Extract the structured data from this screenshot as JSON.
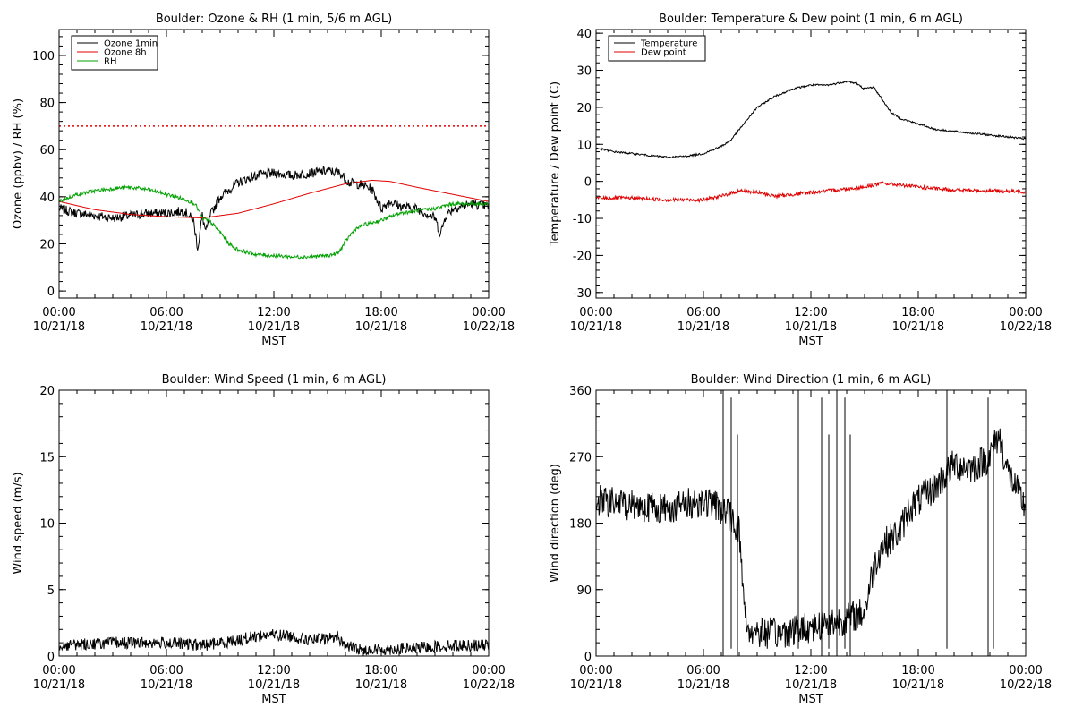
{
  "chart_data": [
    {
      "type": "line",
      "title": "Boulder: Ozone & RH (1 min, 5/6 m AGL)",
      "ylabel": "Ozone (ppbv) / RH (%)",
      "xlabel": "MST",
      "xlim": [
        0,
        24
      ],
      "ylim": [
        -3,
        111
      ],
      "yticks": [
        0,
        20,
        40,
        60,
        80,
        100
      ],
      "legend": "top-left",
      "reference_line": {
        "y": 70,
        "style": "dotted",
        "color": "#e00000"
      },
      "series": [
        {
          "name": "Ozone 1min",
          "color": "#000000",
          "noise": 2.0,
          "points": [
            [
              0,
              35
            ],
            [
              1,
              33
            ],
            [
              2,
              32
            ],
            [
              3,
              31
            ],
            [
              4,
              32
            ],
            [
              5,
              33
            ],
            [
              6,
              33
            ],
            [
              7,
              34
            ],
            [
              7.5,
              30
            ],
            [
              7.75,
              18
            ],
            [
              8,
              32
            ],
            [
              8.2,
              25
            ],
            [
              8.5,
              33
            ],
            [
              9,
              40
            ],
            [
              10,
              46
            ],
            [
              11,
              49
            ],
            [
              12,
              50
            ],
            [
              13,
              49
            ],
            [
              14,
              50
            ],
            [
              15,
              51
            ],
            [
              15.7,
              50
            ],
            [
              16.2,
              46
            ],
            [
              17,
              45
            ],
            [
              17.5,
              43
            ],
            [
              18,
              35
            ],
            [
              18.5,
              38
            ],
            [
              19,
              36
            ],
            [
              20,
              35
            ],
            [
              21,
              31
            ],
            [
              21.3,
              24
            ],
            [
              21.6,
              32
            ],
            [
              22,
              35
            ],
            [
              23,
              37
            ],
            [
              24,
              36
            ]
          ]
        },
        {
          "name": "Ozone 8h",
          "color": "#e00000",
          "noise": 0,
          "points": [
            [
              0,
              38
            ],
            [
              2,
              34.5
            ],
            [
              4,
              32.5
            ],
            [
              6,
              31.5
            ],
            [
              8,
              31
            ],
            [
              10,
              33
            ],
            [
              12,
              37
            ],
            [
              14,
              41.5
            ],
            [
              16,
              45.5
            ],
            [
              17.5,
              47
            ],
            [
              18.5,
              46.5
            ],
            [
              20,
              44
            ],
            [
              22,
              41
            ],
            [
              24,
              38
            ]
          ]
        },
        {
          "name": "RH",
          "color": "#00a000",
          "noise": 0.8,
          "points": [
            [
              0,
              38
            ],
            [
              1,
              41
            ],
            [
              2,
              42.5
            ],
            [
              3,
              43.5
            ],
            [
              4,
              44
            ],
            [
              5,
              43
            ],
            [
              6,
              41
            ],
            [
              7,
              39
            ],
            [
              7.6,
              37
            ],
            [
              8,
              31
            ],
            [
              8.5,
              29
            ],
            [
              9,
              25
            ],
            [
              9.5,
              20
            ],
            [
              10,
              17.5
            ],
            [
              11,
              15.5
            ],
            [
              12,
              15
            ],
            [
              13,
              14.5
            ],
            [
              14,
              14.5
            ],
            [
              15,
              15
            ],
            [
              15.6,
              16
            ],
            [
              16,
              21
            ],
            [
              16.5,
              26
            ],
            [
              17,
              28
            ],
            [
              18,
              30
            ],
            [
              19,
              33
            ],
            [
              20,
              34
            ],
            [
              21,
              35
            ],
            [
              22,
              37
            ],
            [
              23,
              37
            ],
            [
              24,
              37
            ]
          ]
        }
      ]
    },
    {
      "type": "line",
      "title": "Boulder: Temperature & Dew point (1 min, 6 m AGL)",
      "ylabel": "Temperature / Dew point (C)",
      "xlabel": "MST",
      "xlim": [
        0,
        24
      ],
      "ylim": [
        -31.5,
        41
      ],
      "yticks": [
        -30,
        -20,
        -10,
        0,
        10,
        20,
        30,
        40
      ],
      "legend": "top-left",
      "series": [
        {
          "name": "Temperature",
          "color": "#000000",
          "noise": 0.25,
          "points": [
            [
              0,
              9
            ],
            [
              1,
              8
            ],
            [
              2,
              7.5
            ],
            [
              3,
              7
            ],
            [
              4,
              6.5
            ],
            [
              5,
              6.8
            ],
            [
              6,
              7.5
            ],
            [
              7,
              9.5
            ],
            [
              7.5,
              11
            ],
            [
              8,
              14
            ],
            [
              8.5,
              17
            ],
            [
              9,
              20
            ],
            [
              10,
              23
            ],
            [
              11,
              25
            ],
            [
              12,
              26
            ],
            [
              13,
              26
            ],
            [
              14,
              27
            ],
            [
              14.5,
              26.5
            ],
            [
              15,
              25
            ],
            [
              15.5,
              25.5
            ],
            [
              16,
              22
            ],
            [
              16.5,
              18.5
            ],
            [
              17,
              17
            ],
            [
              18,
              15.5
            ],
            [
              19,
              14
            ],
            [
              20,
              13.5
            ],
            [
              21,
              13
            ],
            [
              22,
              12.5
            ],
            [
              23,
              12
            ],
            [
              24,
              11.5
            ]
          ]
        },
        {
          "name": "Dew point",
          "color": "#e00000",
          "noise": 0.5,
          "points": [
            [
              0,
              -4.5
            ],
            [
              2,
              -4.5
            ],
            [
              4,
              -5
            ],
            [
              6,
              -5
            ],
            [
              7,
              -4
            ],
            [
              8,
              -2.5
            ],
            [
              9,
              -3
            ],
            [
              10,
              -4
            ],
            [
              11,
              -3.5
            ],
            [
              12,
              -3
            ],
            [
              13,
              -2.5
            ],
            [
              14,
              -2
            ],
            [
              15,
              -1.5
            ],
            [
              15.5,
              -1
            ],
            [
              16,
              -0.5
            ],
            [
              17,
              -1
            ],
            [
              18,
              -1.5
            ],
            [
              19,
              -2
            ],
            [
              20,
              -2.3
            ],
            [
              21,
              -2.5
            ],
            [
              22,
              -2.5
            ],
            [
              23,
              -2.7
            ],
            [
              24,
              -2.8
            ]
          ]
        }
      ]
    },
    {
      "type": "line",
      "title": "Boulder: Wind Speed (1 min, 6 m AGL)",
      "ylabel": "Wind speed (m/s)",
      "xlabel": "MST",
      "xlim": [
        0,
        24
      ],
      "ylim": [
        0,
        20
      ],
      "yticks": [
        0,
        5,
        10,
        15,
        20
      ],
      "series": [
        {
          "color": "#000000",
          "noise": 0.45,
          "points": [
            [
              0,
              0.8
            ],
            [
              3,
              1
            ],
            [
              6,
              1
            ],
            [
              8,
              0.8
            ],
            [
              9,
              1
            ],
            [
              10,
              1.2
            ],
            [
              11,
              1.5
            ],
            [
              12,
              1.6
            ],
            [
              13,
              1.5
            ],
            [
              14,
              1.2
            ],
            [
              15,
              1.3
            ],
            [
              15.5,
              1.5
            ],
            [
              16,
              0.8
            ],
            [
              17,
              0.4
            ],
            [
              18,
              0.5
            ],
            [
              20,
              0.6
            ],
            [
              22,
              0.8
            ],
            [
              24,
              0.8
            ]
          ]
        }
      ]
    },
    {
      "type": "line",
      "title": "Boulder: Wind Direction (1 min, 6 m AGL)",
      "ylabel": "Wind direction (deg)",
      "xlabel": "MST",
      "xlim": [
        0,
        24
      ],
      "ylim": [
        0,
        360
      ],
      "yticks": [
        0,
        90,
        180,
        270,
        360
      ],
      "series": [
        {
          "color": "#000000",
          "noise": 22,
          "points": [
            [
              0,
              210
            ],
            [
              2,
              205
            ],
            [
              4,
              200
            ],
            [
              5,
              205
            ],
            [
              6,
              210
            ],
            [
              7,
              200
            ],
            [
              7.5,
              190
            ],
            [
              8,
              170
            ],
            [
              8.3,
              60
            ],
            [
              8.5,
              35
            ],
            [
              10,
              30
            ],
            [
              11,
              35
            ],
            [
              12,
              40
            ],
            [
              13,
              45
            ],
            [
              14,
              50
            ],
            [
              15,
              60
            ],
            [
              15.5,
              120
            ],
            [
              16,
              150
            ],
            [
              17,
              170
            ],
            [
              17.5,
              200
            ],
            [
              18,
              210
            ],
            [
              19,
              230
            ],
            [
              20,
              260
            ],
            [
              21,
              255
            ],
            [
              22,
              270
            ],
            [
              22.5,
              300
            ],
            [
              23,
              250
            ],
            [
              24,
              200
            ]
          ]
        }
      ]
    }
  ],
  "xticks": [
    {
      "x": 0,
      "time": "00:00",
      "date": "10/21/18"
    },
    {
      "x": 6,
      "time": "06:00",
      "date": "10/21/18"
    },
    {
      "x": 12,
      "time": "12:00",
      "date": "10/21/18"
    },
    {
      "x": 18,
      "time": "18:00",
      "date": "10/21/18"
    },
    {
      "x": 24,
      "time": "00:00",
      "date": "10/22/18"
    }
  ]
}
